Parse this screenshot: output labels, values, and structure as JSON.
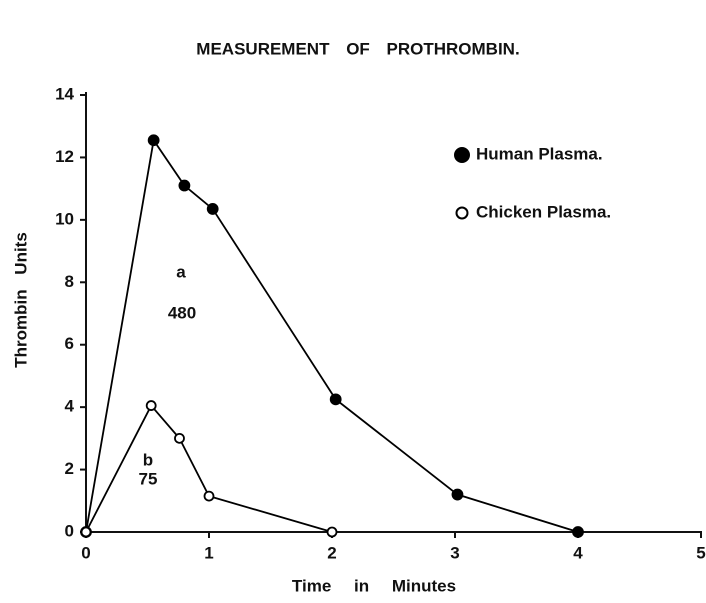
{
  "chart_data": {
    "type": "line",
    "title": "MEASUREMENT OF PROTHROMBIN.",
    "x_label": "Time in Minutes",
    "y_label": "Thrombin Units",
    "series": [
      {
        "name": "Human Plasma.",
        "color": "#000000",
        "marker": "filled",
        "x": [
          0,
          0.55,
          0.8,
          1.03,
          2.03,
          3.02,
          4
        ],
        "values": [
          0,
          12.55,
          11.1,
          10.35,
          4.25,
          1.2,
          0
        ]
      },
      {
        "name": "Chicken Plasma.",
        "color": "#000000",
        "marker": "open",
        "x": [
          0,
          0.53,
          0.76,
          1.0,
          2.0
        ],
        "values": [
          0,
          4.05,
          3.0,
          1.15,
          0
        ]
      }
    ],
    "annotations": [
      "a",
      "480",
      "b",
      "75"
    ],
    "xlim": [
      0,
      5
    ],
    "xticks": [
      0,
      1,
      2,
      3,
      4,
      5
    ],
    "ylim": [
      0,
      14
    ],
    "yticks": [
      0,
      2,
      4,
      6,
      8,
      10,
      12,
      14
    ],
    "grid": false,
    "legend": "upper right"
  }
}
